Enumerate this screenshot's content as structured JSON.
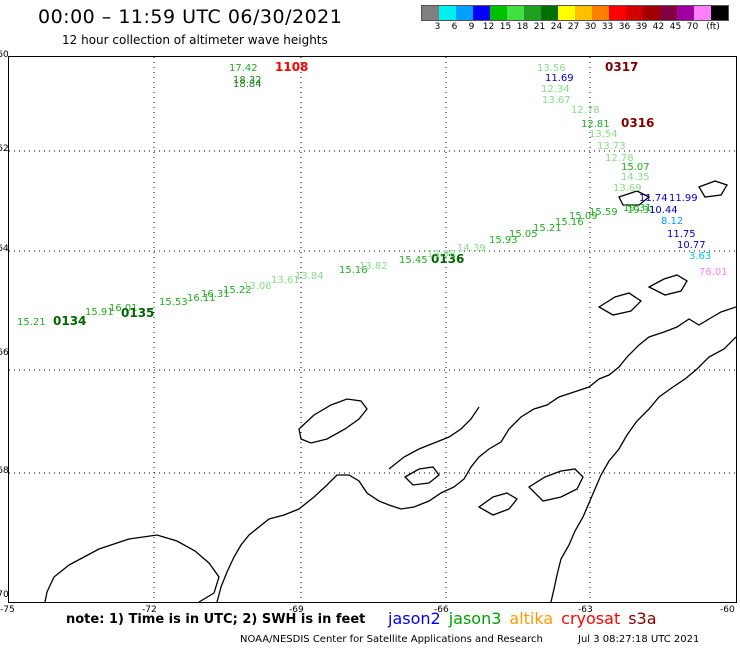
{
  "header": {
    "title": "00:00 – 11:59 UTC 06/30/2021",
    "subtitle": "12 hour collection of altimeter wave heights"
  },
  "legend": {
    "colors": [
      "#7f7f7f",
      "#00f0f0",
      "#00a0ff",
      "#0000ff",
      "#00c000",
      "#40e040",
      "#20a020",
      "#007000",
      "#ffff00",
      "#ffc000",
      "#ff8000",
      "#ff0000",
      "#d00000",
      "#a00000",
      "#800040",
      "#a000a0",
      "#ff80ff",
      "#000000"
    ],
    "labels": [
      "3",
      "6",
      "9",
      "12",
      "15",
      "18",
      "21",
      "24",
      "27",
      "30",
      "33",
      "36",
      "39",
      "42",
      "45",
      "70",
      "(ft)"
    ]
  },
  "axes": {
    "lat_labels": [
      "-60",
      "-62",
      "-64",
      "-66",
      "-68",
      "-70"
    ],
    "lon_labels": [
      "-75",
      "-72",
      "-69",
      "-66",
      "-63",
      "-60"
    ]
  },
  "observations": [
    {
      "text": "17.42",
      "color": "#22aa22"
    },
    {
      "text": "1108",
      "color": "#ff0000",
      "time": true
    },
    {
      "text": "18.32",
      "color": "#228822"
    },
    {
      "text": "18.84",
      "color": "#228822"
    },
    {
      "text": "13.56",
      "color": "#88dd88"
    },
    {
      "text": "0317",
      "color": "#800000",
      "time": true
    },
    {
      "text": "11.69",
      "color": "#0000cc"
    },
    {
      "text": "12.34",
      "color": "#88dd88"
    },
    {
      "text": "13.67",
      "color": "#88dd88"
    },
    {
      "text": "12.78",
      "color": "#88dd88"
    },
    {
      "text": "12.81",
      "color": "#22aa22"
    },
    {
      "text": "0316",
      "color": "#800000",
      "time": true
    },
    {
      "text": "13.54",
      "color": "#88dd88"
    },
    {
      "text": "13.73",
      "color": "#88dd88"
    },
    {
      "text": "12.78",
      "color": "#88dd88"
    },
    {
      "text": "15.07",
      "color": "#22aa22"
    },
    {
      "text": "14.35",
      "color": "#88dd88"
    },
    {
      "text": "13.69",
      "color": "#88dd88"
    },
    {
      "text": "11.74",
      "color": "#0000cc"
    },
    {
      "text": "11.99",
      "color": "#0000cc"
    },
    {
      "text": "19.31",
      "color": "#22aa22"
    },
    {
      "text": "10.44",
      "color": "#0000cc"
    },
    {
      "text": "8.12",
      "color": "#00a0ff"
    },
    {
      "text": "11.75",
      "color": "#0000cc"
    },
    {
      "text": "10.77",
      "color": "#0000cc"
    },
    {
      "text": "3.63",
      "color": "#00ccdd"
    },
    {
      "text": "76.01",
      "color": "#ff80ff"
    },
    {
      "text": "15.21",
      "color": "#22aa22"
    },
    {
      "text": "0134",
      "color": "#006600",
      "time": true
    },
    {
      "text": "15.91",
      "color": "#22aa22"
    },
    {
      "text": "16.01",
      "color": "#22aa22"
    },
    {
      "text": "0135",
      "color": "#006600",
      "time": true
    },
    {
      "text": "15.53",
      "color": "#22aa22"
    },
    {
      "text": "16.11",
      "color": "#22aa22"
    },
    {
      "text": "16.31",
      "color": "#22aa22"
    },
    {
      "text": "15.22",
      "color": "#22aa22"
    },
    {
      "text": "13.08",
      "color": "#88dd88"
    },
    {
      "text": "13.61",
      "color": "#88dd88"
    },
    {
      "text": "13.84",
      "color": "#88dd88"
    },
    {
      "text": "15.16",
      "color": "#22aa22"
    },
    {
      "text": "13.82",
      "color": "#88dd88"
    },
    {
      "text": "15.45",
      "color": "#22aa22"
    },
    {
      "text": "0136",
      "color": "#006600",
      "time": true
    },
    {
      "text": "13.98",
      "color": "#88dd88"
    },
    {
      "text": "14.39",
      "color": "#88dd88"
    },
    {
      "text": "15.93",
      "color": "#22aa22"
    },
    {
      "text": "15.05",
      "color": "#22aa22"
    },
    {
      "text": "15.21",
      "color": "#22aa22"
    },
    {
      "text": "15.16",
      "color": "#22aa22"
    },
    {
      "text": "15.09",
      "color": "#22aa22"
    },
    {
      "text": "15.59",
      "color": "#22aa22"
    },
    {
      "text": "19.31",
      "color": "#22aa22"
    }
  ],
  "footer": {
    "note": "note: 1) Time is in UTC; 2) SWH is in feet",
    "satellites": [
      {
        "name": "jason2",
        "color": "#0000ff"
      },
      {
        "name": "jason3",
        "color": "#00a000"
      },
      {
        "name": "altika",
        "color": "#ff9900"
      },
      {
        "name": "cryosat",
        "color": "#ff0000"
      },
      {
        "name": "s3a",
        "color": "#800000"
      }
    ],
    "credit": "NOAA/NESDIS Center for Satellite Applications and Research",
    "date": "Jul  3 08:27:18 UTC 2021"
  }
}
